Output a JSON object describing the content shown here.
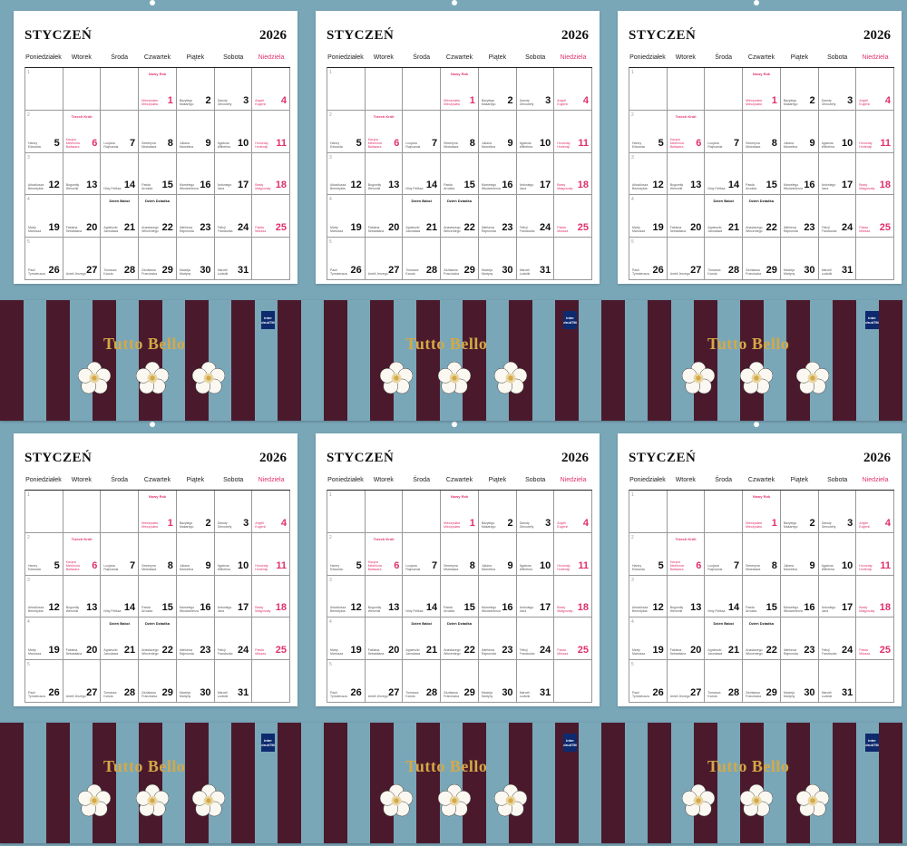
{
  "calendar": {
    "month": "STYCZEŃ",
    "year": "2026",
    "weekdays": [
      "Poniedziałek",
      "Wtorek",
      "Środa",
      "Czwartek",
      "Piątek",
      "Sobota",
      "Niedziela"
    ],
    "weeks": [
      "1",
      "2",
      "3",
      "4",
      "5"
    ],
    "cells": [
      {
        "n": "",
        "hol": "",
        "names": ""
      },
      {
        "n": "",
        "hol": "",
        "names": ""
      },
      {
        "n": "",
        "hol": "",
        "names": ""
      },
      {
        "n": "1",
        "hol": "Nowy Rok",
        "hol_red": true,
        "names": "Mieczysław Mieczysław",
        "red": true
      },
      {
        "n": "2",
        "hol": "",
        "names": "Bazylego Makarego"
      },
      {
        "n": "3",
        "hol": "",
        "names": "Danuty Genowefy"
      },
      {
        "n": "4",
        "hol": "",
        "names": "Angeli Eugenii",
        "red": true
      },
      {
        "n": "5",
        "hol": "",
        "names": "Hanny Edwarda"
      },
      {
        "n": "6",
        "hol": "Trzech Króli",
        "hol_red": true,
        "names": "Kacpra Melchiora Baltazara",
        "red": true
      },
      {
        "n": "7",
        "hol": "",
        "names": "Lucjana Rajmunda"
      },
      {
        "n": "8",
        "hol": "",
        "names": "Seweryna Mścisława"
      },
      {
        "n": "9",
        "hol": "",
        "names": "Juliana Marcelina"
      },
      {
        "n": "10",
        "hol": "",
        "names": "Agatona Wilhelma"
      },
      {
        "n": "11",
        "hol": "",
        "names": "Honoraty Hortensji",
        "red": true
      },
      {
        "n": "12",
        "hol": "",
        "names": "Arkadiusza Benedykta"
      },
      {
        "n": "13",
        "hol": "",
        "names": "Bogumiły Weroniki"
      },
      {
        "n": "14",
        "hol": "",
        "names": "Niny Feliksa"
      },
      {
        "n": "15",
        "hol": "",
        "names": "Pawła Arnolda"
      },
      {
        "n": "16",
        "hol": "",
        "names": "Marcelego Włodzimierza"
      },
      {
        "n": "17",
        "hol": "",
        "names": "Antoniego Jana"
      },
      {
        "n": "18",
        "hol": "",
        "names": "Beaty Małgorzaty",
        "red": true
      },
      {
        "n": "19",
        "hol": "",
        "names": "Marty Mariusza"
      },
      {
        "n": "20",
        "hol": "",
        "names": "Fabiana Sebastiana"
      },
      {
        "n": "21",
        "hol": "Dzień Babci",
        "names": "Agnieszki Jarosława"
      },
      {
        "n": "22",
        "hol": "Dzień Dziadka",
        "names": "Anastazego Wincentego"
      },
      {
        "n": "23",
        "hol": "",
        "names": "Ildefonsa Rajmunda"
      },
      {
        "n": "24",
        "hol": "",
        "names": "Felicji Franciszka"
      },
      {
        "n": "25",
        "hol": "",
        "names": "Pawła Miłosza",
        "red": true
      },
      {
        "n": "26",
        "hol": "",
        "names": "Pauli Tymoteusza"
      },
      {
        "n": "27",
        "hol": "",
        "names": "Anieli Jerzego"
      },
      {
        "n": "28",
        "hol": "",
        "names": "Tomasza Karola"
      },
      {
        "n": "29",
        "hol": "",
        "names": "Zdzisława Franciszka"
      },
      {
        "n": "30",
        "hol": "",
        "names": "Macieja Martyny"
      },
      {
        "n": "31",
        "hol": "",
        "names": "Marceli Ludwiki"
      },
      {
        "n": "",
        "hol": "",
        "names": ""
      }
    ]
  },
  "banner": {
    "title": "Tutto Bello",
    "logo_text": "inter drukTM"
  },
  "colors": {
    "background": "#79a7b8",
    "stripe_dark": "#4a1a2c",
    "gold": "#d5a847",
    "sunday_red": "#e0306a",
    "logo_blue": "#0e2a6e"
  }
}
